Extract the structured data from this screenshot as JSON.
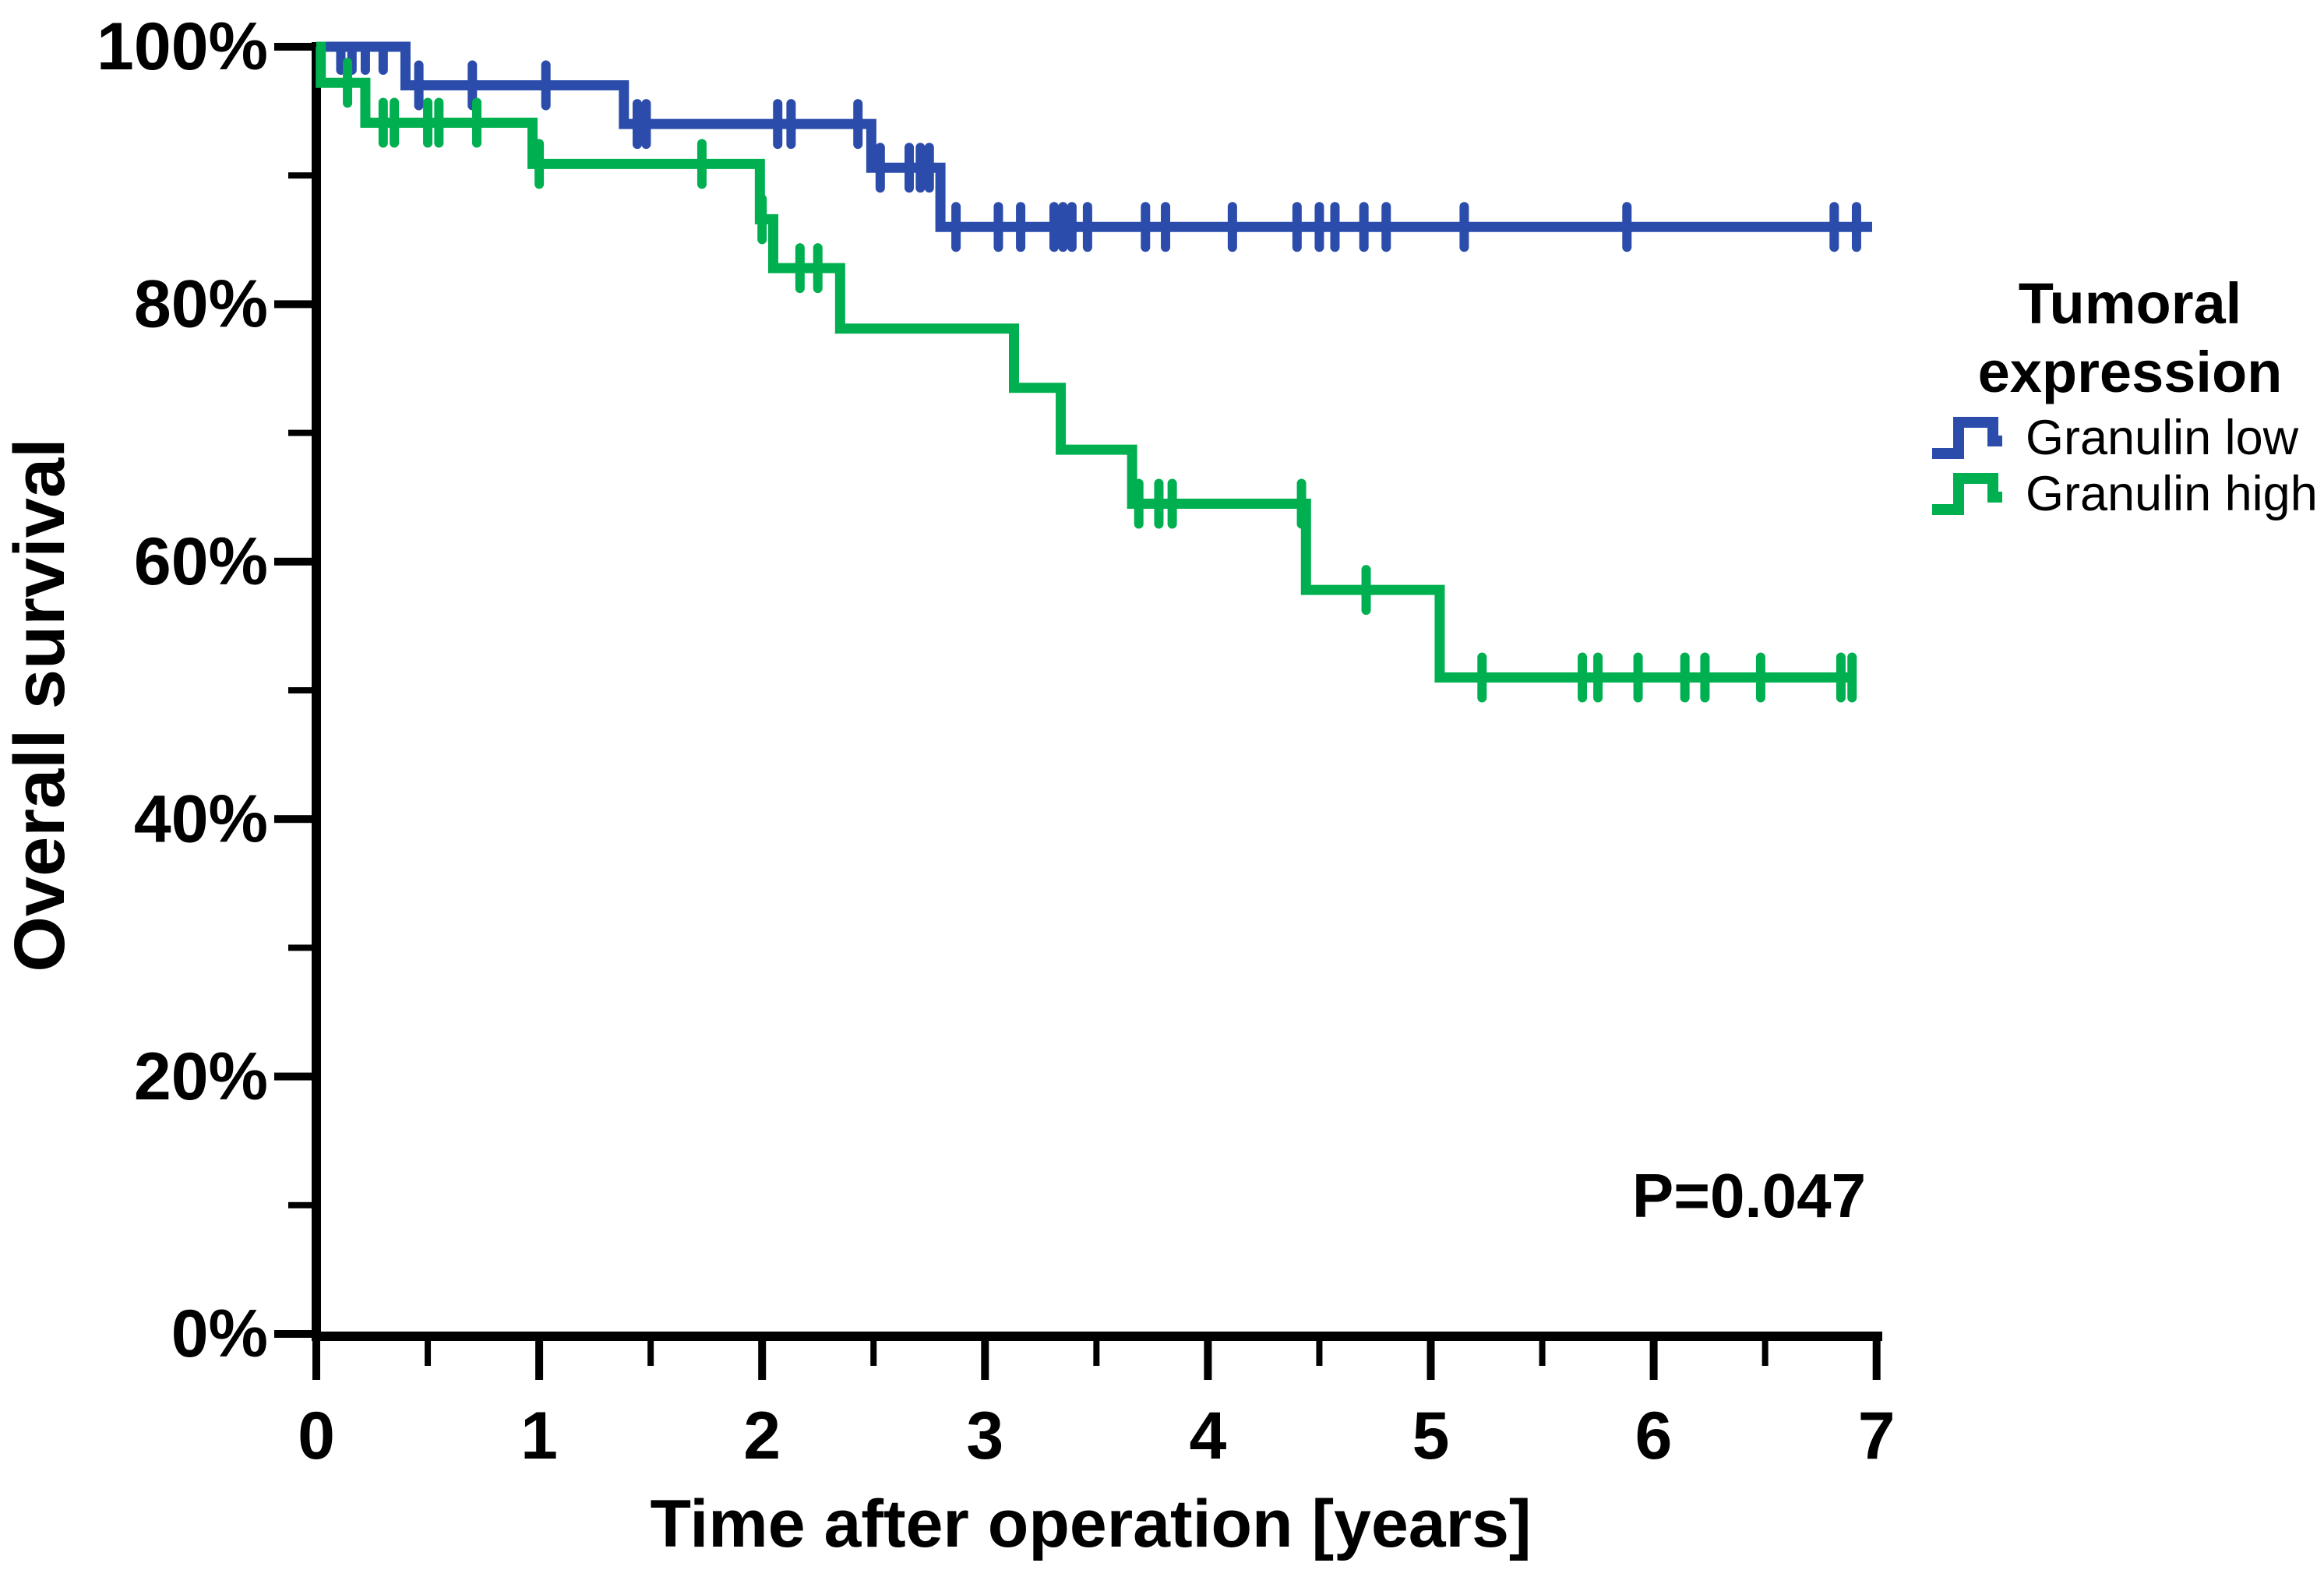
{
  "chart_data": {
    "type": "line",
    "subtype": "kaplan-meier-step",
    "title": "",
    "xlabel": "Time after operation [years]",
    "ylabel": "Overall survival",
    "x_axis": {
      "range": [
        0,
        7
      ],
      "major_ticks": [
        0,
        1,
        2,
        3,
        4,
        5,
        6,
        7
      ],
      "major_tick_labels": [
        "0",
        "1",
        "2",
        "3",
        "4",
        "5",
        "6",
        "7"
      ],
      "minor_ticks": [
        0.5,
        1.5,
        2.5,
        3.5,
        4.5,
        5.5,
        6.5
      ]
    },
    "y_axis": {
      "range": [
        0,
        100
      ],
      "major_ticks": [
        0,
        20,
        40,
        60,
        80,
        100
      ],
      "major_tick_labels": [
        "0%",
        "20%",
        "40%",
        "60%",
        "80%",
        "100%"
      ],
      "minor_ticks": [
        10,
        30,
        50,
        70,
        90
      ]
    },
    "annotation": {
      "p_value": "P=0.047"
    },
    "legend": {
      "title_line1": "Tumoral",
      "title_line2": "expression",
      "entries": [
        {
          "label": "Granulin low",
          "color": "#2b4caa"
        },
        {
          "label": "Granulin high",
          "color": "#00b050"
        }
      ]
    },
    "series": [
      {
        "name": "Granulin low",
        "color": "#2b4caa",
        "end_time": 6.98,
        "steps": [
          [
            0,
            100
          ],
          [
            0.4,
            97
          ],
          [
            1.38,
            94
          ],
          [
            2.49,
            90.6
          ],
          [
            2.8,
            86
          ]
        ],
        "censors": [
          [
            0.11,
            100
          ],
          [
            0.16,
            100
          ],
          [
            0.22,
            100
          ],
          [
            0.3,
            100
          ],
          [
            0.46,
            97
          ],
          [
            0.7,
            97
          ],
          [
            1.03,
            97
          ],
          [
            1.44,
            94
          ],
          [
            1.48,
            94
          ],
          [
            2.07,
            94
          ],
          [
            2.13,
            94
          ],
          [
            2.43,
            94
          ],
          [
            2.53,
            90.6
          ],
          [
            2.66,
            90.6
          ],
          [
            2.71,
            90.6
          ],
          [
            2.75,
            90.6
          ],
          [
            2.87,
            86
          ],
          [
            3.06,
            86
          ],
          [
            3.16,
            86
          ],
          [
            3.31,
            86
          ],
          [
            3.35,
            86
          ],
          [
            3.39,
            86
          ],
          [
            3.46,
            86
          ],
          [
            3.72,
            86
          ],
          [
            3.81,
            86
          ],
          [
            4.11,
            86
          ],
          [
            4.4,
            86
          ],
          [
            4.5,
            86
          ],
          [
            4.57,
            86
          ],
          [
            4.7,
            86
          ],
          [
            4.8,
            86
          ],
          [
            5.15,
            86
          ],
          [
            5.88,
            86
          ],
          [
            6.81,
            86
          ],
          [
            6.91,
            86
          ]
        ]
      },
      {
        "name": "Granulin high",
        "color": "#00b050",
        "end_time": 6.91,
        "steps": [
          [
            0,
            100
          ],
          [
            0.02,
            97.2
          ],
          [
            0.22,
            94.1
          ],
          [
            0.97,
            90.9
          ],
          [
            1.99,
            86.6
          ],
          [
            2.05,
            82.8
          ],
          [
            2.35,
            78.1
          ],
          [
            3.13,
            73.5
          ],
          [
            3.34,
            68.7
          ],
          [
            3.66,
            64.5
          ],
          [
            4.44,
            57.8
          ],
          [
            5.04,
            51.0
          ]
        ],
        "censors": [
          [
            0.14,
            97.2
          ],
          [
            0.3,
            94.1
          ],
          [
            0.35,
            94.1
          ],
          [
            0.5,
            94.1
          ],
          [
            0.55,
            94.1
          ],
          [
            0.72,
            94.1
          ],
          [
            1.0,
            90.9
          ],
          [
            1.73,
            90.9
          ],
          [
            2.0,
            86.6
          ],
          [
            2.17,
            82.8
          ],
          [
            2.25,
            82.8
          ],
          [
            3.69,
            64.5
          ],
          [
            3.78,
            64.5
          ],
          [
            3.84,
            64.5
          ],
          [
            4.42,
            64.5
          ],
          [
            4.71,
            57.8
          ],
          [
            5.23,
            51.0
          ],
          [
            5.68,
            51.0
          ],
          [
            5.75,
            51.0
          ],
          [
            5.93,
            51.0
          ],
          [
            6.14,
            51.0
          ],
          [
            6.23,
            51.0
          ],
          [
            6.48,
            51.0
          ],
          [
            6.84,
            51.0
          ],
          [
            6.89,
            51.0
          ]
        ]
      }
    ]
  }
}
